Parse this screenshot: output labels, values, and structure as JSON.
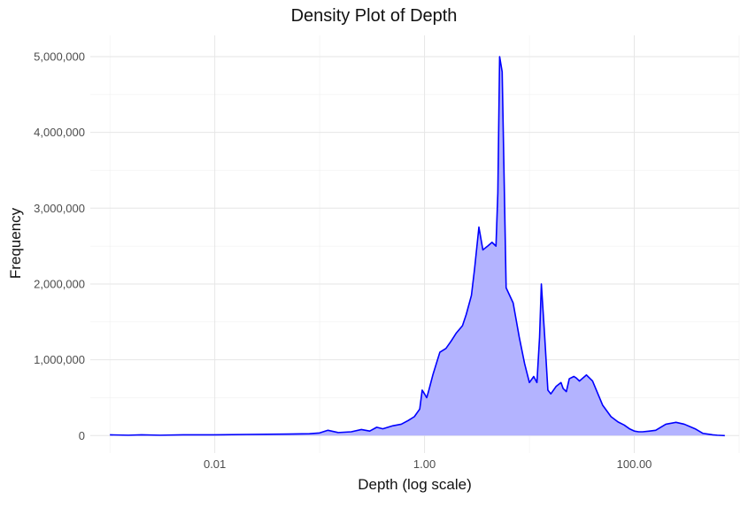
{
  "chart_data": {
    "type": "area",
    "title": "Density Plot of Depth",
    "xlabel": "Depth (log scale)",
    "ylabel": "Frequency",
    "x_scale": "log10",
    "xlim": [
      0.00065,
      1000
    ],
    "ylim": [
      -230000,
      5280000
    ],
    "x_ticks": [
      0.01,
      1,
      100
    ],
    "x_tick_labels": [
      "0.01",
      "1.00",
      "100.00"
    ],
    "y_ticks": [
      0,
      1000000,
      2000000,
      3000000,
      4000000,
      5000000
    ],
    "y_tick_labels": [
      "0",
      "1,000,000",
      "2,000,000",
      "3,000,000",
      "4,000,000",
      "5,000,000"
    ],
    "grid": true,
    "fill_color": "#b3b3ff",
    "line_color": "#0000ff",
    "series": [
      {
        "x": [
          0.001,
          0.0015,
          0.002,
          0.003,
          0.005,
          0.01,
          0.02,
          0.05,
          0.08,
          0.1,
          0.12,
          0.15,
          0.2,
          0.25,
          0.3,
          0.35,
          0.4,
          0.5,
          0.6,
          0.7,
          0.8,
          0.9,
          0.95,
          1.0,
          1.05,
          1.1,
          1.2,
          1.4,
          1.6,
          1.8,
          2.0,
          2.3,
          2.5,
          2.8,
          3.0,
          3.3,
          3.6,
          4.0,
          4.4,
          4.8,
          5.0,
          5.2,
          5.5,
          6.0,
          7.0,
          8.0,
          9.0,
          10.0,
          11.0,
          11.8,
          12.5,
          13.0,
          14.0,
          15.0,
          16.0,
          18.0,
          20.0,
          21.0,
          22.5,
          24.0,
          26.5,
          28.0,
          30.0,
          35.0,
          40.0,
          50.0,
          60.0,
          70.0,
          80.0,
          90.0,
          100.0,
          110.0,
          120.0,
          140.0,
          160.0,
          200.0,
          250.0,
          300.0,
          380.0,
          450.0,
          500.0,
          560.0,
          620.0,
          680.0,
          730.0
        ],
        "y": [
          10000,
          5000,
          10000,
          5000,
          10000,
          10000,
          15000,
          20000,
          25000,
          35000,
          70000,
          40000,
          50000,
          80000,
          60000,
          110000,
          90000,
          130000,
          150000,
          200000,
          250000,
          350000,
          600000,
          550000,
          500000,
          600000,
          800000,
          1100000,
          1150000,
          1250000,
          1350000,
          1450000,
          1600000,
          1850000,
          2200000,
          2750000,
          2450000,
          2500000,
          2550000,
          2500000,
          3200000,
          5000000,
          4800000,
          1950000,
          1750000,
          1300000,
          950000,
          700000,
          780000,
          700000,
          1300000,
          2000000,
          1300000,
          600000,
          550000,
          650000,
          700000,
          620000,
          580000,
          750000,
          780000,
          760000,
          720000,
          800000,
          720000,
          400000,
          250000,
          180000,
          140000,
          90000,
          60000,
          50000,
          50000,
          60000,
          70000,
          150000,
          175000,
          150000,
          90000,
          30000,
          20000,
          10000,
          5000,
          2000,
          0
        ]
      }
    ]
  }
}
